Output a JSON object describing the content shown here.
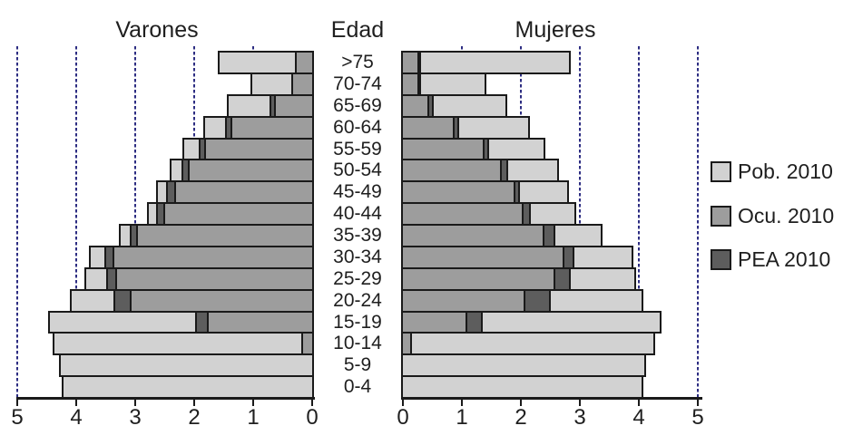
{
  "chart_data": {
    "type": "bar",
    "subtype": "population-pyramid-overlapping-bars",
    "title_left": "Varones",
    "title_center": "Edad",
    "title_right": "Mujeres",
    "categories": [
      ">75",
      "70-74",
      "65-69",
      "60-64",
      "55-59",
      "50-54",
      "45-49",
      "40-44",
      "35-39",
      "30-34",
      "25-29",
      "20-24",
      "15-19",
      "10-14",
      "5-9",
      "0-4"
    ],
    "axis_ticks_left": [
      "5",
      "4",
      "3",
      "2",
      "1",
      "0"
    ],
    "axis_ticks_right": [
      "0",
      "1",
      "2",
      "3",
      "4",
      "5"
    ],
    "xlim": [
      0,
      5
    ],
    "grid": "dashed vertical lines at 1,2,3,4,5 on each side",
    "grid_color": "#2d2d82",
    "outline_color": "#1a1a1a",
    "legend_position": "right",
    "legend": [
      {
        "label": "Pob. 2010",
        "color": "#d2d2d2"
      },
      {
        "label": "Ocu. 2010",
        "color": "#9d9d9d"
      },
      {
        "label": "PEA 2010",
        "color": "#5d5d5d"
      }
    ],
    "series": [
      {
        "name": "Varones",
        "side": "left",
        "pob": [
          1.6,
          1.05,
          1.45,
          1.85,
          2.2,
          2.42,
          2.65,
          2.8,
          3.28,
          3.78,
          3.86,
          4.11,
          4.48,
          4.4,
          4.3,
          4.24
        ],
        "pea": [
          0.3,
          0.35,
          0.73,
          1.47,
          1.92,
          2.22,
          2.47,
          2.65,
          3.1,
          3.52,
          3.49,
          3.37,
          1.98,
          0.19,
          0,
          0
        ],
        "ocu": [
          0.3,
          0.35,
          0.65,
          1.38,
          1.83,
          2.11,
          2.34,
          2.52,
          2.98,
          3.39,
          3.34,
          3.09,
          1.78,
          0.19,
          0,
          0
        ]
      },
      {
        "name": "Mujeres",
        "side": "right",
        "pob": [
          2.84,
          1.42,
          1.77,
          2.15,
          2.41,
          2.64,
          2.82,
          2.94,
          3.38,
          3.9,
          3.95,
          4.08,
          4.39,
          4.27,
          4.12,
          4.07
        ],
        "pea": [
          0.3,
          0.3,
          0.53,
          0.95,
          1.46,
          1.78,
          1.98,
          2.17,
          2.59,
          2.9,
          2.84,
          2.51,
          1.35,
          0.15,
          0,
          0
        ],
        "ocu": [
          0.28,
          0.28,
          0.44,
          0.87,
          1.38,
          1.67,
          1.9,
          2.05,
          2.4,
          2.74,
          2.59,
          2.08,
          1.09,
          0.15,
          0,
          0
        ]
      }
    ]
  }
}
